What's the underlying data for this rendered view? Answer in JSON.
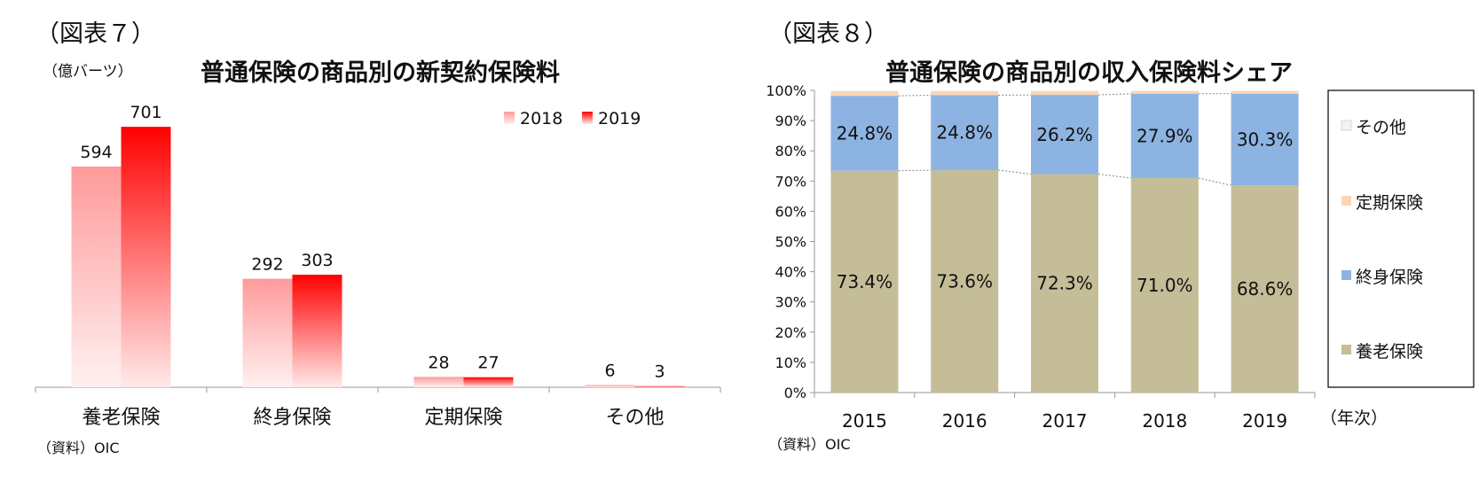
{
  "left": {
    "figure_label": "（図表７）",
    "unit": "（億バーツ）",
    "source": "（資料）OIC"
  },
  "right": {
    "figure_label": "（図表８）",
    "source": "（資料）OIC",
    "x_unit": "（年次）"
  },
  "colors": {
    "s2018_top": "#ff9a9a",
    "s2018_bottom": "#fff0f0",
    "s2019_top": "#ff0000",
    "s2019_bottom": "#ffeaea",
    "yoro": "#c4bd97",
    "shushin": "#8db3e2",
    "teiki": "#fbd5b5",
    "sonota": "#f2f2f2"
  },
  "chart_data": [
    {
      "type": "bar",
      "title": "普通保険の商品別の新契約保険料",
      "categories": [
        "養老保険",
        "終身保険",
        "定期保険",
        "その他"
      ],
      "series": [
        {
          "name": "2018",
          "values": [
            594,
            292,
            28,
            6
          ]
        },
        {
          "name": "2019",
          "values": [
            701,
            303,
            27,
            3
          ]
        }
      ],
      "ylim": [
        0,
        780
      ],
      "grid": false,
      "legend": "top-right"
    },
    {
      "type": "bar",
      "stacked": true,
      "title": "普通保険の商品別の収入保険料シェア",
      "categories": [
        "2015",
        "2016",
        "2017",
        "2018",
        "2019"
      ],
      "yticks": [
        "0%",
        "10%",
        "20%",
        "30%",
        "40%",
        "50%",
        "60%",
        "70%",
        "80%",
        "90%",
        "100%"
      ],
      "series": [
        {
          "name": "養老保険",
          "values": [
            73.4,
            73.6,
            72.3,
            71.0,
            68.6
          ],
          "labels": [
            "73.4%",
            "73.6%",
            "72.3%",
            "71.0%",
            "68.6%"
          ]
        },
        {
          "name": "終身保険",
          "values": [
            24.8,
            24.8,
            26.2,
            27.9,
            30.3
          ],
          "labels": [
            "24.8%",
            "24.8%",
            "26.2%",
            "27.9%",
            "30.3%"
          ]
        },
        {
          "name": "定期保険",
          "values": [
            1.5,
            1.3,
            1.3,
            0.9,
            0.9
          ]
        },
        {
          "name": "その他",
          "values": [
            0.3,
            0.3,
            0.2,
            0.2,
            0.2
          ]
        }
      ],
      "ylim": [
        0,
        100
      ],
      "grid": false,
      "legend": "right"
    }
  ]
}
